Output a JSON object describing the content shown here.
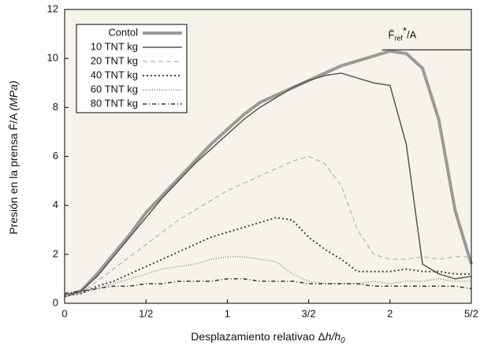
{
  "chart_data": {
    "type": "line",
    "xlabel": {
      "main": "Desplazamiento relativao Δ",
      "italic": "h/h",
      "sub": "0"
    },
    "ylabel": {
      "main": "Presión en la prensa F̄/A ",
      "italic": "(MPa)"
    },
    "annotation": {
      "base": "F̄",
      "sub": "ref",
      "sup": "*",
      "tail": "/A",
      "value": 10.35,
      "x": [
        1.95,
        2.5
      ]
    },
    "x": [
      0,
      0.1,
      0.2,
      0.3,
      0.4,
      0.5,
      0.6,
      0.7,
      0.8,
      0.9,
      1.0,
      1.1,
      1.2,
      1.3,
      1.4,
      1.5,
      1.6,
      1.7,
      1.8,
      1.9,
      2.0,
      2.1,
      2.2,
      2.3,
      2.4,
      2.5
    ],
    "series": [
      {
        "name": "Contol",
        "color": "#9a9a9a",
        "width": 4,
        "dash": "none",
        "values": [
          0.3,
          0.5,
          1.2,
          2.0,
          2.8,
          3.7,
          4.4,
          5.1,
          5.8,
          6.5,
          7.1,
          7.7,
          8.2,
          8.5,
          8.8,
          9.1,
          9.4,
          9.7,
          9.9,
          10.1,
          10.3,
          10.2,
          9.6,
          7.5,
          3.8,
          1.6
        ]
      },
      {
        "name": "10 TNT kg",
        "color": "#555555",
        "width": 1.5,
        "dash": "none",
        "values": [
          0.3,
          0.5,
          1.1,
          1.9,
          2.7,
          3.5,
          4.3,
          5.0,
          5.7,
          6.3,
          6.9,
          7.5,
          8.0,
          8.4,
          8.8,
          9.1,
          9.3,
          9.4,
          9.2,
          9.0,
          8.9,
          6.5,
          1.6,
          1.2,
          1.0,
          1.1
        ]
      },
      {
        "name": "20 TNT kg",
        "color": "#bdbdbd",
        "width": 1.5,
        "dash": "6,4",
        "values": [
          0.3,
          0.4,
          0.9,
          1.4,
          1.9,
          2.4,
          2.9,
          3.4,
          3.8,
          4.2,
          4.6,
          4.9,
          5.2,
          5.5,
          5.8,
          6.0,
          5.7,
          4.8,
          3.0,
          2.0,
          1.8,
          1.8,
          1.9,
          1.8,
          1.9,
          1.9
        ]
      },
      {
        "name": "40 TNT kg",
        "color": "#444444",
        "width": 2,
        "dash": "2,3",
        "values": [
          0.3,
          0.4,
          0.7,
          0.9,
          1.2,
          1.5,
          1.8,
          2.1,
          2.4,
          2.7,
          2.9,
          3.1,
          3.3,
          3.5,
          3.4,
          2.7,
          2.2,
          1.8,
          1.3,
          1.3,
          1.3,
          1.4,
          1.3,
          1.3,
          1.2,
          1.2
        ]
      },
      {
        "name": "60 TNT kg",
        "color": "#888888",
        "width": 1.5,
        "dash": "1,2",
        "values": [
          0.4,
          0.4,
          0.6,
          0.8,
          1.0,
          1.2,
          1.4,
          1.5,
          1.6,
          1.8,
          1.9,
          1.9,
          1.8,
          1.7,
          1.2,
          0.9,
          0.8,
          0.8,
          0.8,
          0.9,
          0.8,
          0.9,
          0.9,
          1.0,
          0.9,
          0.9
        ]
      },
      {
        "name": "80 TNT kg",
        "color": "#333333",
        "width": 1.5,
        "dash": "5,3,1,3",
        "values": [
          0.4,
          0.5,
          0.6,
          0.7,
          0.7,
          0.8,
          0.8,
          0.9,
          0.9,
          0.9,
          1.0,
          1.0,
          0.9,
          0.9,
          0.9,
          0.8,
          0.8,
          0.8,
          0.8,
          0.7,
          0.7,
          0.7,
          0.7,
          0.7,
          0.7,
          0.6
        ]
      }
    ],
    "xlim": [
      0,
      2.5
    ],
    "xticks": [
      0,
      {
        "value": 0.5,
        "label": "1/2"
      },
      1,
      {
        "value": 1.5,
        "label": "3/2"
      },
      2,
      {
        "value": 2.5,
        "label": "5/2"
      }
    ],
    "ylim": [
      0,
      12
    ],
    "yticks": [
      0,
      2,
      4,
      6,
      8,
      10,
      12
    ],
    "legend": "upper left",
    "background": "#f6f3ea"
  }
}
